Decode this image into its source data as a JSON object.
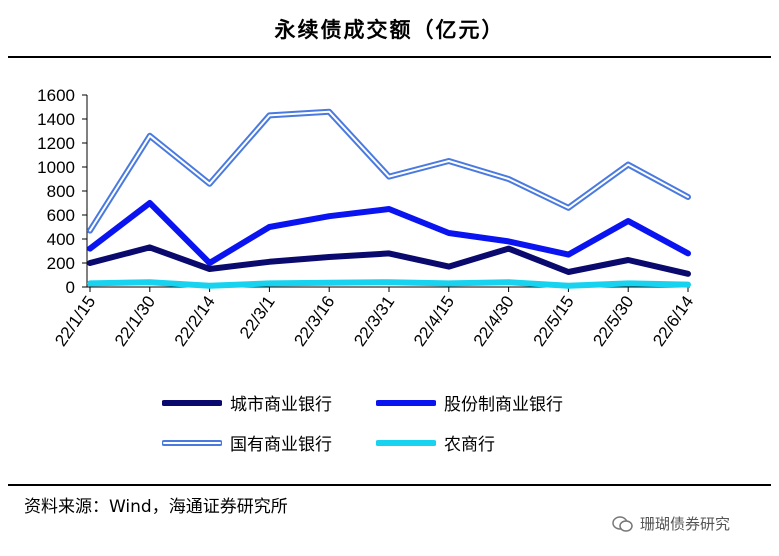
{
  "header": {
    "title": "永续债成交额（亿元）"
  },
  "footer": {
    "source": "资料来源：Wind，海通证券研究所",
    "watermark": "珊瑚债券研究",
    "watermark_icon": "wechat-icon"
  },
  "colors": {
    "city": "#0a0a6e",
    "joint": "#0a14f0",
    "state": "#4a7ae0",
    "rural": "#17d3f0"
  },
  "chart_data": {
    "type": "line",
    "title": "永续债成交额（亿元）",
    "categories": [
      "22/1/15",
      "22/1/30",
      "22/2/14",
      "22/3/1",
      "22/3/16",
      "22/3/31",
      "22/4/15",
      "22/4/30",
      "22/5/15",
      "22/5/30",
      "22/6/14"
    ],
    "x_tick_labels": [
      "22/1/15",
      "22/1/30",
      "22/2/14",
      "22/3/1",
      "22/3/16",
      "22/3/31",
      "22/4/15",
      "22/4/30",
      "22/5/15",
      "22/5/30",
      "22/6/14"
    ],
    "y_tick_labels": [
      "0",
      "200",
      "400",
      "600",
      "800",
      "1000",
      "1200",
      "1400",
      "1600"
    ],
    "ylim": [
      0,
      1600
    ],
    "grid": false,
    "legend_placement": "bottom",
    "series": [
      {
        "name": "城市商业银行",
        "style": "thick-dark-navy",
        "values": [
          200,
          330,
          150,
          210,
          250,
          280,
          170,
          320,
          125,
          225,
          110
        ]
      },
      {
        "name": "股份制商业银行",
        "style": "thick-blue",
        "values": [
          320,
          700,
          200,
          500,
          590,
          650,
          450,
          380,
          270,
          550,
          280
        ]
      },
      {
        "name": "国有商业银行",
        "style": "double-line",
        "values": [
          470,
          1260,
          860,
          1430,
          1460,
          920,
          1050,
          900,
          660,
          1020,
          750
        ]
      },
      {
        "name": "农商行",
        "style": "thick-cyan",
        "values": [
          30,
          40,
          10,
          30,
          35,
          40,
          30,
          40,
          10,
          30,
          20
        ]
      }
    ]
  }
}
